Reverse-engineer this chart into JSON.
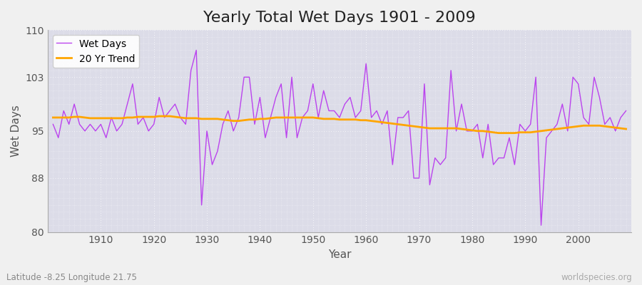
{
  "title": "Yearly Total Wet Days 1901 - 2009",
  "xlabel": "Year",
  "ylabel": "Wet Days",
  "years": [
    1901,
    1902,
    1903,
    1904,
    1905,
    1906,
    1907,
    1908,
    1909,
    1910,
    1911,
    1912,
    1913,
    1914,
    1915,
    1916,
    1917,
    1918,
    1919,
    1920,
    1921,
    1922,
    1923,
    1924,
    1925,
    1926,
    1927,
    1928,
    1929,
    1930,
    1931,
    1932,
    1933,
    1934,
    1935,
    1936,
    1937,
    1938,
    1939,
    1940,
    1941,
    1942,
    1943,
    1944,
    1945,
    1946,
    1947,
    1948,
    1949,
    1950,
    1951,
    1952,
    1953,
    1954,
    1955,
    1956,
    1957,
    1958,
    1959,
    1960,
    1961,
    1962,
    1963,
    1964,
    1965,
    1966,
    1967,
    1968,
    1969,
    1970,
    1971,
    1972,
    1973,
    1974,
    1975,
    1976,
    1977,
    1978,
    1979,
    1980,
    1981,
    1982,
    1983,
    1984,
    1985,
    1986,
    1987,
    1988,
    1989,
    1990,
    1991,
    1992,
    1993,
    1994,
    1995,
    1996,
    1997,
    1998,
    1999,
    2000,
    2001,
    2002,
    2003,
    2004,
    2005,
    2006,
    2007,
    2008,
    2009
  ],
  "wet_days": [
    96,
    94,
    98,
    96,
    99,
    96,
    95,
    96,
    95,
    96,
    94,
    97,
    95,
    96,
    99,
    102,
    96,
    97,
    95,
    96,
    100,
    97,
    98,
    99,
    97,
    96,
    104,
    107,
    84,
    95,
    90,
    92,
    96,
    98,
    95,
    97,
    103,
    103,
    96,
    100,
    94,
    97,
    100,
    102,
    94,
    103,
    94,
    97,
    98,
    102,
    97,
    101,
    98,
    98,
    97,
    99,
    100,
    97,
    98,
    105,
    97,
    98,
    96,
    98,
    90,
    97,
    97,
    98,
    88,
    88,
    102,
    87,
    91,
    90,
    91,
    104,
    95,
    99,
    95,
    95,
    96,
    91,
    96,
    90,
    91,
    91,
    94,
    90,
    96,
    95,
    96,
    103,
    81,
    94,
    95,
    96,
    99,
    95,
    103,
    102,
    97,
    96,
    103,
    100,
    96,
    97,
    95,
    97,
    98
  ],
  "trend": [
    97.0,
    97.0,
    97.0,
    97.0,
    97.1,
    97.1,
    97.0,
    96.9,
    96.9,
    96.9,
    96.9,
    96.9,
    96.9,
    96.9,
    97.0,
    97.0,
    97.1,
    97.1,
    97.1,
    97.1,
    97.2,
    97.2,
    97.2,
    97.1,
    97.0,
    96.9,
    96.9,
    96.9,
    96.8,
    96.8,
    96.8,
    96.8,
    96.7,
    96.6,
    96.5,
    96.5,
    96.6,
    96.7,
    96.7,
    96.8,
    96.8,
    96.9,
    97.0,
    97.0,
    97.0,
    97.0,
    97.0,
    97.0,
    97.0,
    97.0,
    96.9,
    96.8,
    96.8,
    96.8,
    96.7,
    96.7,
    96.7,
    96.7,
    96.6,
    96.6,
    96.5,
    96.4,
    96.3,
    96.2,
    96.1,
    96.0,
    95.9,
    95.8,
    95.7,
    95.6,
    95.5,
    95.4,
    95.4,
    95.4,
    95.4,
    95.4,
    95.4,
    95.3,
    95.2,
    95.1,
    95.0,
    95.0,
    94.9,
    94.8,
    94.7,
    94.7,
    94.7,
    94.7,
    94.8,
    94.8,
    94.8,
    94.9,
    95.0,
    95.1,
    95.2,
    95.3,
    95.4,
    95.5,
    95.6,
    95.7,
    95.8,
    95.8,
    95.8,
    95.8,
    95.7,
    95.6,
    95.5,
    95.4,
    95.3
  ],
  "wet_days_color": "#bb44ee",
  "trend_color": "#FFA500",
  "fig_bg_color": "#f0f0f0",
  "plot_bg_color": "#dcdce8",
  "grid_color": "#ffffff",
  "ylim": [
    80,
    110
  ],
  "yticks": [
    80,
    88,
    95,
    103,
    110
  ],
  "xticks": [
    1910,
    1920,
    1930,
    1940,
    1950,
    1960,
    1970,
    1980,
    1990,
    2000
  ],
  "title_fontsize": 16,
  "axis_fontsize": 11,
  "tick_fontsize": 10,
  "legend_fontsize": 10,
  "watermark": "worldspecies.org",
  "subtitle": "Latitude -8.25 Longitude 21.75",
  "xlim_left": 1900,
  "xlim_right": 2010
}
